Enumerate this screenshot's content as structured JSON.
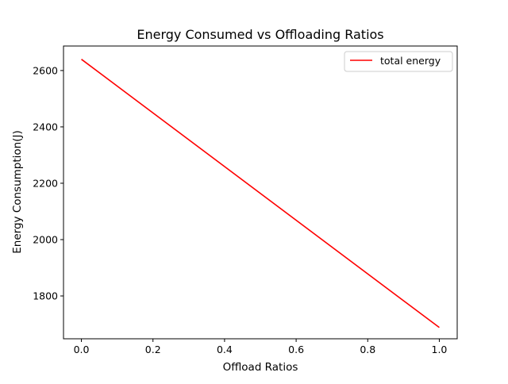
{
  "chart_data": {
    "type": "line",
    "title": "Energy Consumed vs Offloading Ratios",
    "xlabel": "Offload Ratios",
    "ylabel": "Energy Consumption(J)",
    "xlim": [
      -0.05,
      1.05
    ],
    "ylim": [
      1648,
      2687
    ],
    "xticks": [
      0.0,
      0.2,
      0.4,
      0.6,
      0.8,
      1.0
    ],
    "xtick_labels": [
      "0.0",
      "0.2",
      "0.4",
      "0.6",
      "0.8",
      "1.0"
    ],
    "yticks": [
      1800,
      2000,
      2200,
      2400,
      2600
    ],
    "ytick_labels": [
      "1800",
      "2000",
      "2200",
      "2400",
      "2600"
    ],
    "grid": false,
    "legend_position": "top-right",
    "series": [
      {
        "name": "total energy",
        "color": "#ff0000",
        "x": [
          0.0,
          1.0
        ],
        "y": [
          2640,
          1688
        ]
      }
    ]
  }
}
